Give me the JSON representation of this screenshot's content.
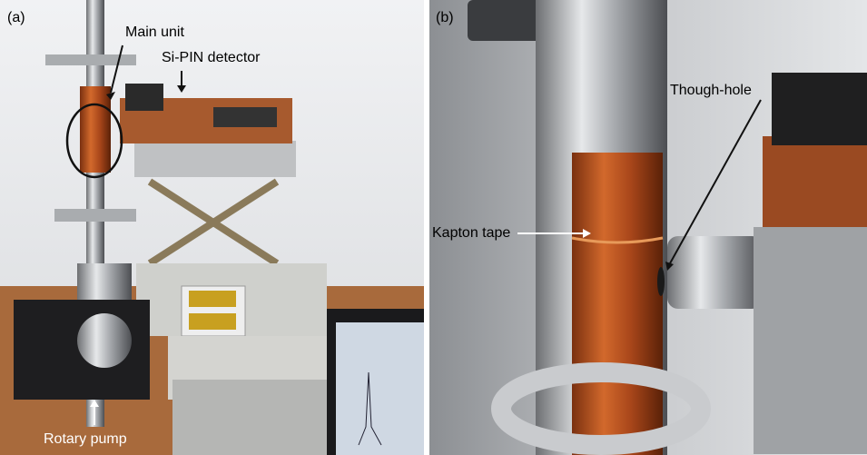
{
  "panels": [
    {
      "label": "(a)",
      "annotations": [
        "Main unit",
        "Si-PIN detector",
        "Rotary pump"
      ]
    },
    {
      "label": "(b)",
      "annotations": [
        "Though-hole",
        "Kapton tape"
      ]
    }
  ]
}
